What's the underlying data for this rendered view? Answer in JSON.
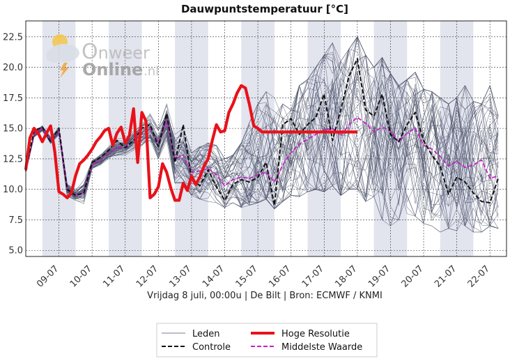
{
  "chart_data": {
    "type": "line",
    "title": "Dauwpuntstemperatuur [°C]",
    "xlabel": "Vrijdag 8 juli, 00:00u  | De Bilt | Bron: ECMWF / KNMI",
    "ylabel": "",
    "ylim": [
      4.5,
      23.8
    ],
    "xlim": [
      0,
      14.5
    ],
    "yticks": [
      5.0,
      7.5,
      10.0,
      12.5,
      15.0,
      17.5,
      20.0,
      22.5
    ],
    "ytick_labels": [
      "5.0",
      "7.5",
      "10.0",
      "12.5",
      "15.0",
      "17.5",
      "20.0",
      "22.5"
    ],
    "xtick_labels": [
      "09-07",
      "10-07",
      "11-07",
      "12-07",
      "13-07",
      "14-07",
      "15-07",
      "16-07",
      "17-07",
      "18-07",
      "19-07",
      "20-07",
      "21-07",
      "22-07"
    ],
    "xtick_positions": [
      1,
      2,
      3,
      4,
      5,
      6,
      7,
      8,
      9,
      10,
      11,
      12,
      13,
      14
    ],
    "shaded_days": [
      [
        0.5,
        1.5
      ],
      [
        2.5,
        3.5
      ],
      [
        4.5,
        5.5
      ],
      [
        6.5,
        7.5
      ],
      [
        8.5,
        9.5
      ],
      [
        10.5,
        11.5
      ],
      [
        12.5,
        13.5
      ],
      [
        14.5,
        14.5
      ]
    ],
    "grid": true,
    "legend_position": "bottom-center",
    "watermark": {
      "part1": "nweer",
      "part2": "Online",
      "part3": ".nl",
      "initial": "O"
    },
    "colors": {
      "leden": "#4a5068",
      "hoge_resolutie": "#e8121a",
      "controle": "#111111",
      "middelste": "#c81ec8",
      "shade": "#e2e4ee"
    },
    "series": [
      {
        "name": "Hoge Resolutie",
        "style": "thick-red",
        "x": [
          0,
          0.125,
          0.25,
          0.375,
          0.5,
          0.625,
          0.75,
          0.875,
          1.0,
          1.125,
          1.25,
          1.375,
          1.5,
          1.625,
          1.75,
          1.875,
          2.0,
          2.125,
          2.25,
          2.375,
          2.5,
          2.625,
          2.75,
          2.875,
          3.0,
          3.125,
          3.25,
          3.375,
          3.5,
          3.625,
          3.75,
          3.875,
          4.0,
          4.125,
          4.25,
          4.375,
          4.5,
          4.625,
          4.75,
          4.875,
          5.0,
          5.125,
          5.25,
          5.375,
          5.5,
          5.625,
          5.75,
          5.875,
          6.0,
          6.125,
          6.25,
          6.375,
          6.5,
          6.625,
          6.75,
          6.875,
          7.0,
          7.125,
          7.25,
          7.375,
          7.5,
          7.625,
          7.75,
          7.875,
          8.0,
          8.125,
          8.25,
          8.375,
          8.5,
          8.625,
          8.75,
          8.875,
          9.0,
          9.125,
          9.25,
          9.375,
          9.5,
          9.625,
          9.75,
          9.875,
          10.0
        ],
        "values": [
          11.6,
          14.2,
          15.0,
          14.6,
          13.9,
          14.6,
          15.2,
          13.1,
          9.8,
          9.6,
          9.3,
          9.7,
          11.1,
          12.1,
          12.4,
          12.8,
          13.3,
          13.9,
          14.3,
          14.8,
          15.0,
          13.6,
          14.6,
          15.1,
          13.8,
          14.4,
          16.6,
          12.2,
          16.3,
          15.6,
          9.3,
          9.6,
          10.2,
          12.1,
          11.4,
          10.1,
          9.1,
          9.1,
          10.5,
          9.9,
          11.1,
          10.4,
          11.0,
          11.9,
          12.5,
          14.0,
          15.3,
          14.7,
          14.8,
          16.3,
          17.0,
          17.9,
          18.5,
          18.3,
          16.9,
          15.2,
          15.0,
          14.7,
          14.7,
          14.7,
          14.7,
          14.7,
          14.7,
          14.7,
          14.7,
          14.7,
          14.7,
          14.7,
          14.7,
          14.7,
          14.7,
          14.7,
          14.7,
          14.7,
          14.7,
          14.7,
          14.7,
          14.7,
          14.7,
          14.7,
          14.7
        ]
      },
      {
        "name": "Controle",
        "style": "dashed-black",
        "x": [
          0,
          0.25,
          0.5,
          0.75,
          1.0,
          1.25,
          1.5,
          1.75,
          2.0,
          2.25,
          2.5,
          2.75,
          3.0,
          3.25,
          3.5,
          3.75,
          4.0,
          4.25,
          4.5,
          4.75,
          5.0,
          5.25,
          5.5,
          5.75,
          6.0,
          6.25,
          6.5,
          6.75,
          7.0,
          7.25,
          7.5,
          7.75,
          8.0,
          8.25,
          8.5,
          8.75,
          9.0,
          9.25,
          9.5,
          9.75,
          10.0,
          10.25,
          10.5,
          10.75,
          11.0,
          11.25,
          11.5,
          11.75,
          12.0,
          12.25,
          12.5,
          12.75,
          13.0,
          13.25,
          13.5,
          13.75,
          14.0,
          14.25
        ],
        "values": [
          11.5,
          14.8,
          15.1,
          13.9,
          15.0,
          10.0,
          9.5,
          9.7,
          12.2,
          12.6,
          13.2,
          14.0,
          13.4,
          14.0,
          15.0,
          15.3,
          13.5,
          16.2,
          12.2,
          15.3,
          10.8,
          10.3,
          11.6,
          10.2,
          9.1,
          10.4,
          10.8,
          10.6,
          11.0,
          12.2,
          8.7,
          15.3,
          15.8,
          14.5,
          15.3,
          15.9,
          17.8,
          14.0,
          16.5,
          19.3,
          20.7,
          16.5,
          16.0,
          17.8,
          14.5,
          13.9,
          15.3,
          16.3,
          14.0,
          12.8,
          11.9,
          9.6,
          11.0,
          10.6,
          9.7,
          9.0,
          8.9,
          10.9
        ]
      },
      {
        "name": "Middelste Waarde",
        "style": "dashed-magenta",
        "x": [
          0,
          0.25,
          0.5,
          0.75,
          1.0,
          1.25,
          1.5,
          1.75,
          2.0,
          2.25,
          2.5,
          2.75,
          3.0,
          3.25,
          3.5,
          3.75,
          4.0,
          4.25,
          4.5,
          4.75,
          5.0,
          5.25,
          5.5,
          5.75,
          6.0,
          6.25,
          6.5,
          6.75,
          7.0,
          7.25,
          7.5,
          7.75,
          8.0,
          8.25,
          8.5,
          8.75,
          9.0,
          9.25,
          9.5,
          9.75,
          10.0,
          10.25,
          10.5,
          10.75,
          11.0,
          11.25,
          11.5,
          11.75,
          12.0,
          12.25,
          12.5,
          12.75,
          13.0,
          13.25,
          13.5,
          13.75,
          14.0,
          14.25
        ],
        "values": [
          11.5,
          14.5,
          15.0,
          14.0,
          14.8,
          10.0,
          9.5,
          9.8,
          12.0,
          12.4,
          13.0,
          13.4,
          13.5,
          14.0,
          14.5,
          15.0,
          13.8,
          15.6,
          12.5,
          12.8,
          11.4,
          11.5,
          11.7,
          11.2,
          10.3,
          10.8,
          11.0,
          10.9,
          11.2,
          11.4,
          10.6,
          12.0,
          13.0,
          13.7,
          14.1,
          14.5,
          14.9,
          15.0,
          14.4,
          15.3,
          15.9,
          15.4,
          14.7,
          15.1,
          14.8,
          13.9,
          14.6,
          15.0,
          13.6,
          13.3,
          12.7,
          11.9,
          12.3,
          11.8,
          12.0,
          12.4,
          10.9,
          11.1
        ]
      }
    ],
    "ensemble": {
      "name": "Leden",
      "style": "thin-gray",
      "x_step": 0.25,
      "x_start": 0,
      "members": 50,
      "base": [
        11.5,
        14.5,
        15.0,
        14.0,
        14.8,
        10.0,
        9.5,
        9.8,
        12.0,
        12.4,
        13.0,
        13.4,
        13.5,
        14.0,
        14.5,
        15.0,
        13.8,
        15.6,
        12.5,
        12.8,
        11.4,
        11.5,
        11.7,
        11.2,
        10.3,
        10.8,
        11.0,
        10.9,
        11.2,
        11.4,
        10.6,
        12.0,
        13.0,
        13.7,
        14.1,
        14.5,
        14.9,
        15.0,
        14.4,
        15.3,
        15.9,
        15.4,
        14.7,
        15.1,
        14.8,
        13.9,
        14.6,
        15.0,
        13.6,
        13.3,
        12.7,
        11.9,
        12.3,
        11.8,
        12.0,
        12.4,
        10.9,
        11.1
      ],
      "min_envelope": [
        11.0,
        13.8,
        14.5,
        13.4,
        14.2,
        9.0,
        8.8,
        8.3,
        11.5,
        11.8,
        12.4,
        12.7,
        12.8,
        13.2,
        13.6,
        14.0,
        12.5,
        14.0,
        10.5,
        10.5,
        9.5,
        9.2,
        9.0,
        8.9,
        8.5,
        8.9,
        8.5,
        8.7,
        8.9,
        9.2,
        8.4,
        9.0,
        9.5,
        9.4,
        9.8,
        10.0,
        9.8,
        10.3,
        9.5,
        10.0,
        10.0,
        9.0,
        9.4,
        7.5,
        7.0,
        7.5,
        8.0,
        7.8,
        7.2,
        7.0,
        6.5,
        6.8,
        6.6,
        7.0,
        6.5,
        6.5,
        7.0,
        6.8
      ],
      "max_envelope": [
        12.0,
        15.3,
        15.8,
        14.7,
        15.6,
        11.0,
        10.4,
        11.0,
        12.6,
        13.1,
        13.6,
        14.2,
        14.2,
        14.8,
        15.6,
        16.2,
        15.0,
        17.0,
        14.5,
        15.0,
        13.0,
        13.5,
        13.8,
        13.6,
        12.5,
        12.8,
        13.8,
        15.5,
        17.0,
        18.0,
        17.5,
        17.0,
        16.5,
        18.5,
        19.0,
        20.0,
        21.0,
        22.0,
        20.5,
        21.5,
        22.5,
        21.0,
        20.0,
        20.8,
        19.5,
        18.5,
        19.0,
        19.6,
        18.2,
        18.0,
        17.5,
        17.0,
        17.5,
        18.5,
        17.2,
        17.0,
        18.5,
        16.0
      ]
    },
    "legend": [
      {
        "label": "Leden",
        "style": "thin-gray"
      },
      {
        "label": "Hoge Resolutie",
        "style": "thick-red"
      },
      {
        "label": "Controle",
        "style": "dashed-black"
      },
      {
        "label": "Middelste Waarde",
        "style": "dashed-magenta"
      }
    ]
  }
}
